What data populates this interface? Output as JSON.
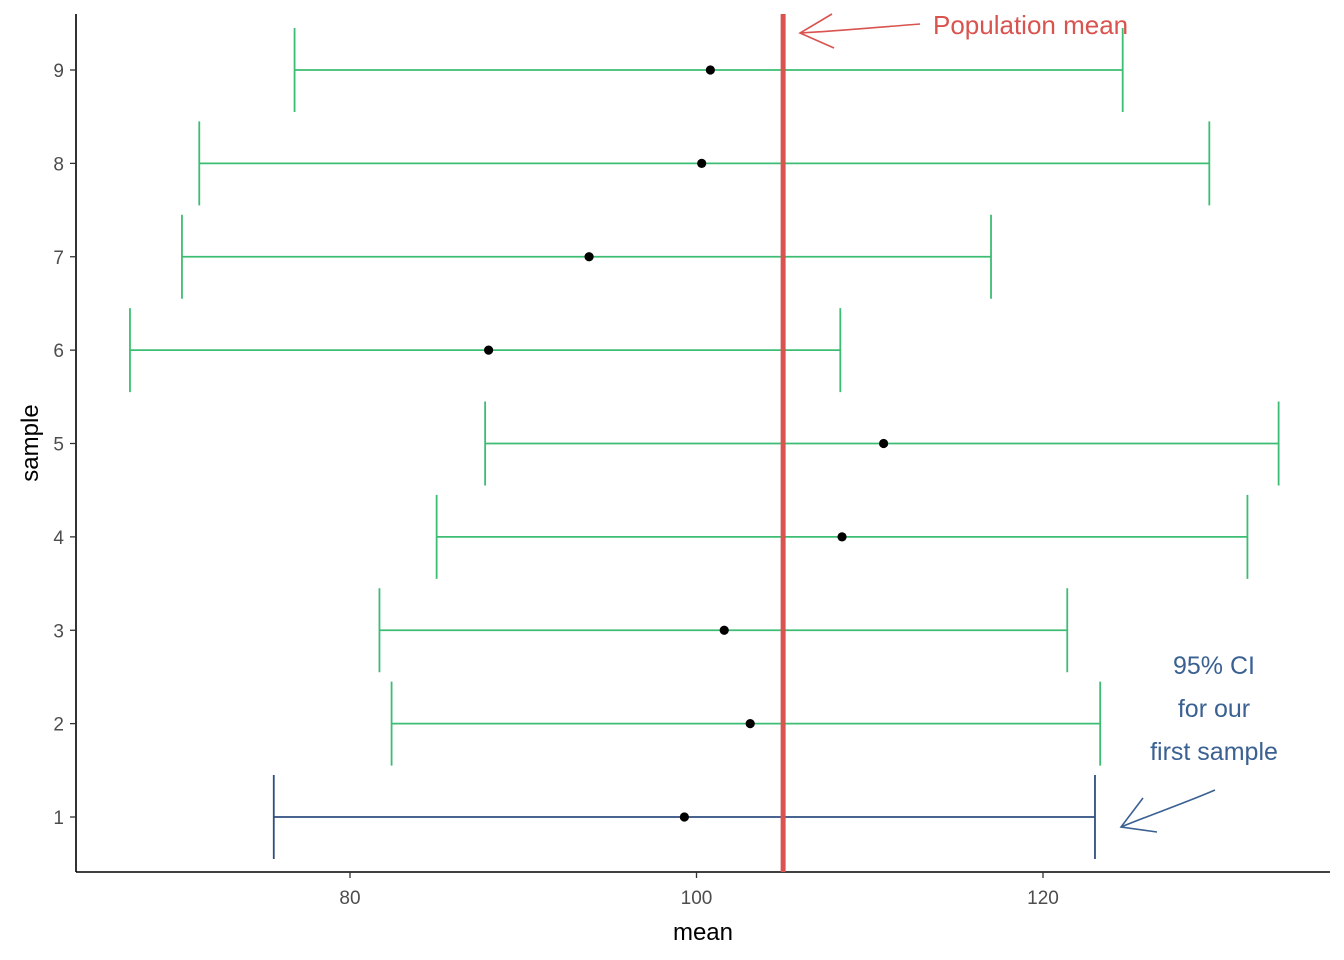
{
  "chart_data": {
    "type": "errorbar",
    "title": "",
    "xlabel": "mean",
    "ylabel": "sample",
    "xlim": [
      65.8,
      134.6
    ],
    "ylim": [
      0.4,
      9.6
    ],
    "x_ticks": [
      80,
      100,
      120
    ],
    "y_ticks": [
      1,
      2,
      3,
      4,
      5,
      6,
      7,
      8,
      9
    ],
    "grid": false,
    "population_mean": 105,
    "series": [
      {
        "sample": 1,
        "mean": 99.3,
        "lower": 75.6,
        "upper": 123.0,
        "highlight": true
      },
      {
        "sample": 2,
        "mean": 103.1,
        "lower": 82.4,
        "upper": 123.3,
        "highlight": false
      },
      {
        "sample": 3,
        "mean": 101.6,
        "lower": 81.7,
        "upper": 121.4,
        "highlight": false
      },
      {
        "sample": 4,
        "mean": 108.4,
        "lower": 85.0,
        "upper": 131.8,
        "highlight": false
      },
      {
        "sample": 5,
        "mean": 110.8,
        "lower": 87.8,
        "upper": 133.6,
        "highlight": false
      },
      {
        "sample": 6,
        "mean": 88.0,
        "lower": 67.3,
        "upper": 108.3,
        "highlight": false
      },
      {
        "sample": 7,
        "mean": 93.8,
        "lower": 70.3,
        "upper": 117.0,
        "highlight": false
      },
      {
        "sample": 8,
        "mean": 100.3,
        "lower": 71.3,
        "upper": 129.6,
        "highlight": false
      },
      {
        "sample": 9,
        "mean": 100.8,
        "lower": 76.8,
        "upper": 124.6,
        "highlight": false
      }
    ],
    "annotations": {
      "population_label": "Population mean",
      "ci_label_lines": [
        "95% CI",
        "for our",
        "first sample"
      ]
    },
    "colors": {
      "ci_default": "#3dbd73",
      "ci_highlight": "#2f4f7f",
      "population_line": "#d9534f",
      "population_text": "#d9534f",
      "ci_text": "#3a6191",
      "point": "#000000",
      "axis": "#000000",
      "tick_text": "#4d4d4d"
    }
  }
}
